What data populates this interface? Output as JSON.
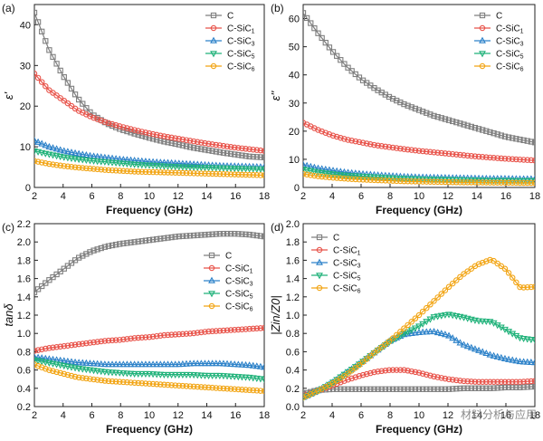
{
  "figure": {
    "watermark": "材料分析与应用",
    "colors": {
      "C": "#7f7f7f",
      "C-SiC1": "#e8534a",
      "C-SiC3": "#2d82c9",
      "C-SiC5": "#20b27a",
      "C-SiC6": "#f2a515"
    }
  },
  "chart_data": [
    {
      "panel": "(a)",
      "type": "line",
      "xlabel": "Frequency (GHz)",
      "ylabel": "ε'",
      "xlim": [
        2,
        18
      ],
      "ylim": [
        0,
        45
      ],
      "xticks": [
        2,
        4,
        6,
        8,
        10,
        12,
        14,
        16,
        18
      ],
      "yticks": [
        0,
        10,
        20,
        30,
        40
      ],
      "legend_position": "top-right",
      "x": [
        2,
        3,
        4,
        5,
        6,
        7,
        8,
        9,
        10,
        11,
        12,
        13,
        14,
        15,
        16,
        17,
        18
      ],
      "series": [
        {
          "name": "C",
          "marker": "square",
          "values": [
            43,
            34,
            27.5,
            22,
            18,
            15.8,
            14.3,
            13.2,
            12.2,
            11.3,
            10.6,
            9.8,
            9.2,
            8.6,
            8.1,
            7.6,
            7.4
          ]
        },
        {
          "name": "C-SiC1",
          "marker": "circle",
          "values": [
            28,
            24,
            21.5,
            19,
            17.3,
            16,
            15,
            14.1,
            13.3,
            12.6,
            12,
            11.4,
            10.8,
            10.3,
            9.8,
            9.4,
            9
          ]
        },
        {
          "name": "C-SiC3",
          "marker": "triangle-up",
          "values": [
            11.5,
            10,
            9,
            8.3,
            7.7,
            7.3,
            6.9,
            6.6,
            6.3,
            6.1,
            5.9,
            5.7,
            5.5,
            5.3,
            5.2,
            5.1,
            5
          ]
        },
        {
          "name": "C-SiC5",
          "marker": "triangle-down",
          "values": [
            9,
            8.2,
            7.5,
            7,
            6.6,
            6.3,
            6,
            5.7,
            5.5,
            5.3,
            5.1,
            5,
            4.9,
            4.8,
            4.7,
            4.6,
            4.5
          ]
        },
        {
          "name": "C-SiC6",
          "marker": "circle",
          "values": [
            6.5,
            5.8,
            5.3,
            4.9,
            4.6,
            4.3,
            4.1,
            3.9,
            3.8,
            3.7,
            3.6,
            3.5,
            3.4,
            3.3,
            3.2,
            3.1,
            3
          ]
        }
      ]
    },
    {
      "panel": "(b)",
      "type": "line",
      "xlabel": "Frequency (GHz)",
      "ylabel": "ε''",
      "xlim": [
        2,
        18
      ],
      "ylim": [
        0,
        65
      ],
      "xticks": [
        2,
        4,
        6,
        8,
        10,
        12,
        14,
        16,
        18
      ],
      "yticks": [
        0,
        10,
        20,
        30,
        40,
        50,
        60
      ],
      "legend_position": "top-right",
      "x": [
        2,
        3,
        4,
        5,
        6,
        7,
        8,
        9,
        10,
        11,
        12,
        13,
        14,
        15,
        16,
        17,
        18
      ],
      "series": [
        {
          "name": "C",
          "marker": "square",
          "values": [
            62,
            55,
            48.5,
            43,
            38.5,
            35,
            32,
            29.5,
            27.5,
            25.5,
            24,
            22.5,
            21,
            19.5,
            18,
            17,
            16
          ]
        },
        {
          "name": "C-SiC1",
          "marker": "circle",
          "values": [
            23,
            20.5,
            18.5,
            17,
            16,
            15,
            14.3,
            13.6,
            13,
            12.5,
            12,
            11.5,
            11,
            10.6,
            10.2,
            9.9,
            9.6
          ]
        },
        {
          "name": "C-SiC3",
          "marker": "triangle-up",
          "values": [
            8,
            6.8,
            6,
            5.3,
            4.8,
            4.4,
            4.1,
            3.8,
            3.6,
            3.5,
            3.4,
            3.3,
            3.2,
            3.1,
            3.1,
            3,
            3
          ]
        },
        {
          "name": "C-SiC5",
          "marker": "triangle-down",
          "values": [
            6.5,
            5.5,
            4.8,
            4.3,
            4,
            3.7,
            3.4,
            3.2,
            3,
            2.9,
            2.8,
            2.7,
            2.6,
            2.5,
            2.5,
            2.4,
            2.4
          ]
        },
        {
          "name": "C-SiC6",
          "marker": "circle",
          "values": [
            4.8,
            4,
            3.5,
            3.1,
            2.8,
            2.6,
            2.4,
            2.2,
            2.1,
            2,
            1.9,
            1.8,
            1.8,
            1.7,
            1.7,
            1.6,
            1.6
          ]
        }
      ]
    },
    {
      "panel": "(c)",
      "type": "line",
      "xlabel": "Frequency (GHz)",
      "ylabel": "tanδ",
      "xlim": [
        2,
        18
      ],
      "ylim": [
        0.2,
        2.2
      ],
      "xticks": [
        2,
        4,
        6,
        8,
        10,
        12,
        14,
        16,
        18
      ],
      "yticks": [
        0.2,
        0.4,
        0.6,
        0.8,
        1.0,
        1.2,
        1.4,
        1.6,
        1.8,
        2.0,
        2.2
      ],
      "ytick_labels": [
        "0.2",
        "0.4",
        "0.6",
        "0.8",
        "1.0",
        "1.2",
        "1.4",
        "1.6",
        "1.8",
        "2.0",
        "2.2"
      ],
      "legend_position": "center-right",
      "x": [
        2,
        3,
        4,
        5,
        6,
        7,
        8,
        9,
        10,
        11,
        12,
        13,
        14,
        15,
        16,
        17,
        18
      ],
      "series": [
        {
          "name": "C",
          "marker": "square",
          "values": [
            1.45,
            1.58,
            1.7,
            1.82,
            1.9,
            1.95,
            1.98,
            2,
            2.02,
            2.04,
            2.06,
            2.07,
            2.08,
            2.09,
            2.09,
            2.08,
            2.06
          ]
        },
        {
          "name": "C-SiC1",
          "marker": "circle",
          "values": [
            0.81,
            0.84,
            0.86,
            0.88,
            0.9,
            0.92,
            0.93,
            0.95,
            0.96,
            0.98,
            0.99,
            1,
            1.02,
            1.03,
            1.04,
            1.05,
            1.06
          ]
        },
        {
          "name": "C-SiC3",
          "marker": "triangle-up",
          "values": [
            0.74,
            0.72,
            0.7,
            0.68,
            0.67,
            0.66,
            0.66,
            0.66,
            0.66,
            0.66,
            0.66,
            0.67,
            0.67,
            0.67,
            0.66,
            0.65,
            0.63
          ]
        },
        {
          "name": "C-SiC5",
          "marker": "triangle-down",
          "values": [
            0.71,
            0.68,
            0.65,
            0.62,
            0.6,
            0.58,
            0.57,
            0.56,
            0.56,
            0.55,
            0.55,
            0.55,
            0.54,
            0.54,
            0.53,
            0.52,
            0.5
          ]
        },
        {
          "name": "C-SiC6",
          "marker": "circle",
          "values": [
            0.66,
            0.6,
            0.56,
            0.52,
            0.5,
            0.48,
            0.47,
            0.46,
            0.45,
            0.44,
            0.43,
            0.42,
            0.41,
            0.4,
            0.39,
            0.38,
            0.37
          ]
        }
      ]
    },
    {
      "panel": "(d)",
      "type": "line",
      "xlabel": "Frequency (GHz)",
      "ylabel": "|Zin/Z0|",
      "xlim": [
        2,
        18
      ],
      "ylim": [
        0,
        2.0
      ],
      "xticks": [
        2,
        4,
        6,
        8,
        10,
        12,
        14,
        16,
        18
      ],
      "yticks": [
        0,
        0.2,
        0.4,
        0.6,
        0.8,
        1.0,
        1.2,
        1.4,
        1.6,
        1.8,
        2.0
      ],
      "ytick_labels": [
        "0.0",
        "0.2",
        "0.4",
        "0.6",
        "0.8",
        "1.0",
        "1.2",
        "1.4",
        "1.6",
        "1.8",
        "2.0"
      ],
      "legend_position": "top-left",
      "x": [
        2,
        3,
        4,
        5,
        6,
        7,
        8,
        9,
        10,
        11,
        12,
        13,
        14,
        15,
        16,
        17,
        18
      ],
      "series": [
        {
          "name": "C",
          "marker": "square",
          "values": [
            0.14,
            0.18,
            0.19,
            0.19,
            0.19,
            0.19,
            0.19,
            0.19,
            0.19,
            0.19,
            0.19,
            0.2,
            0.2,
            0.2,
            0.21,
            0.21,
            0.22
          ]
        },
        {
          "name": "C-SiC1",
          "marker": "circle",
          "values": [
            0.12,
            0.17,
            0.23,
            0.29,
            0.34,
            0.38,
            0.4,
            0.4,
            0.37,
            0.33,
            0.3,
            0.28,
            0.27,
            0.27,
            0.27,
            0.27,
            0.28
          ]
        },
        {
          "name": "C-SiC3",
          "marker": "triangle-up",
          "values": [
            0.1,
            0.17,
            0.26,
            0.37,
            0.48,
            0.6,
            0.72,
            0.79,
            0.81,
            0.82,
            0.78,
            0.68,
            0.62,
            0.56,
            0.52,
            0.49,
            0.48
          ]
        },
        {
          "name": "C-SiC5",
          "marker": "triangle-down",
          "values": [
            0.1,
            0.17,
            0.26,
            0.37,
            0.48,
            0.6,
            0.71,
            0.8,
            0.88,
            0.98,
            1.01,
            0.98,
            0.94,
            0.93,
            0.84,
            0.75,
            0.73
          ]
        },
        {
          "name": "C-SiC6",
          "marker": "circle",
          "values": [
            0.1,
            0.17,
            0.25,
            0.35,
            0.47,
            0.6,
            0.72,
            0.86,
            1,
            1.15,
            1.3,
            1.44,
            1.55,
            1.61,
            1.5,
            1.3,
            1.31
          ]
        }
      ]
    }
  ]
}
